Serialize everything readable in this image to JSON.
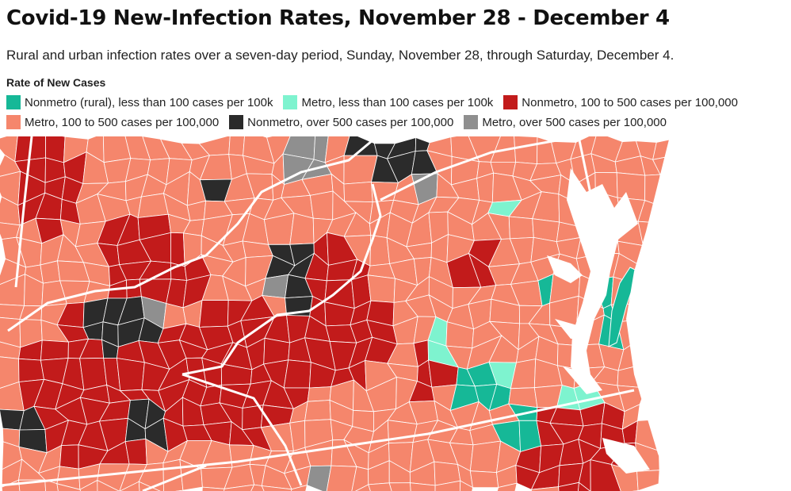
{
  "title": "Covid-19 New-Infection Rates, November 28 - December 4",
  "subtitle": "Rural and urban infection rates over a seven-day period, Sunday, November 28, through Saturday, December 4.",
  "legend": {
    "title": "Rate of New Cases",
    "items": [
      {
        "label": "Nonmetro (rural), less than 100 cases per 100k",
        "color": "#16b897"
      },
      {
        "label": "Metro, less than 100 cases per 100k",
        "color": "#7ef3cf"
      },
      {
        "label": "Nonmetro, 100 to 500 cases per 100,000",
        "color": "#c21b1b"
      },
      {
        "label": "Metro, 100 to 500 cases per 100,000",
        "color": "#f5866c"
      },
      {
        "label": "Nonmetro, over 500 cases per 100,000",
        "color": "#2b2b2b"
      },
      {
        "label": "Metro, over 500 cases per 100,000",
        "color": "#8f8f8f"
      }
    ]
  },
  "colors": {
    "water": "#ffffff",
    "county_border": "#ffffff",
    "state_border": "#ffffff"
  }
}
